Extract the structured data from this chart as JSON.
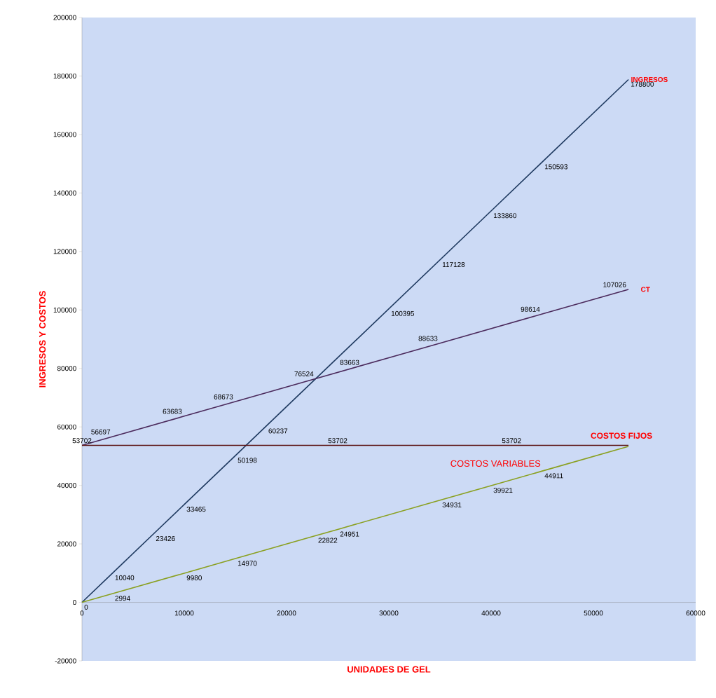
{
  "chart_data": {
    "type": "line",
    "xlabel": "UNIDADES DE GEL",
    "ylabel": "INGRESOS Y COSTOS",
    "xlim": [
      0,
      60000
    ],
    "xticks": [
      0,
      10000,
      20000,
      30000,
      40000,
      50000,
      60000
    ],
    "ylim": [
      -20000,
      200000
    ],
    "yticks": [
      -20000,
      0,
      20000,
      40000,
      60000,
      80000,
      100000,
      120000,
      140000,
      160000,
      180000,
      200000
    ],
    "grid": false,
    "legend": false,
    "marker": "none",
    "line_style": "solid",
    "series": [
      {
        "name": "INGRESOS",
        "color": "#1f3a60",
        "x": [
          0,
          3000,
          7000,
          10000,
          15000,
          18000,
          25000,
          30000,
          35000,
          40000,
          45000,
          53430
        ],
        "values": [
          0,
          10040,
          23426,
          33465,
          50198,
          60237,
          83663,
          100395,
          117128,
          133860,
          150593,
          178800
        ],
        "value_labels": [
          null,
          "10040",
          "23426",
          "33465",
          "50198",
          "60237",
          "83663",
          "100395",
          "117128",
          "133860",
          "150593",
          "178800"
        ]
      },
      {
        "name": "CT",
        "color": "#4b2a5c",
        "x": [
          0,
          3000,
          10000,
          15000,
          22866,
          35000,
          45000,
          53430
        ],
        "values": [
          53702,
          56697,
          63683,
          68673,
          76524,
          88633,
          98614,
          107026
        ],
        "value_labels": [
          null,
          "56697",
          "63683",
          "68673",
          "76524",
          "88633",
          "98614",
          "107026"
        ]
      },
      {
        "name": "COSTOS FIJOS",
        "color": "#5a1010",
        "x": [
          0,
          25000,
          42000,
          53430
        ],
        "values": [
          53702,
          53702,
          53702,
          53702
        ],
        "value_labels": [
          "53702",
          "53702",
          "53702",
          null
        ]
      },
      {
        "name": "COSTOS VARIABLES",
        "color": "#8aa020",
        "x": [
          0,
          3000,
          10000,
          15000,
          22866,
          25000,
          35000,
          40000,
          45000,
          53430
        ],
        "values": [
          0,
          2994,
          9980,
          14970,
          22822,
          24951,
          34931,
          39921,
          44911,
          53324
        ],
        "value_labels": [
          "0",
          "2994",
          "9980",
          "14970",
          "22822",
          "24951",
          "34931",
          "39921",
          "44911",
          null
        ]
      }
    ]
  }
}
